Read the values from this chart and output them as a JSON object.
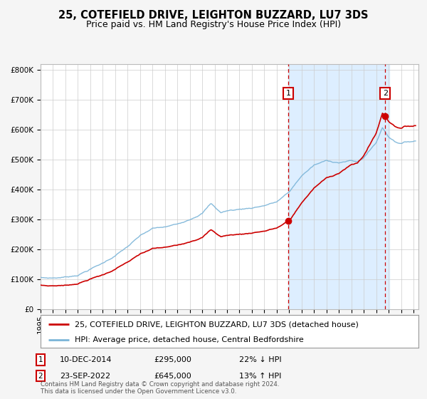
{
  "title": "25, COTEFIELD DRIVE, LEIGHTON BUZZARD, LU7 3DS",
  "subtitle": "Price paid vs. HM Land Registry's House Price Index (HPI)",
  "ylim": [
    0,
    820000
  ],
  "yticks": [
    0,
    100000,
    200000,
    300000,
    400000,
    500000,
    600000,
    700000,
    800000
  ],
  "ytick_labels": [
    "£0",
    "£100K",
    "£200K",
    "£300K",
    "£400K",
    "£500K",
    "£600K",
    "£700K",
    "£800K"
  ],
  "hpi_color": "#7ab4d8",
  "price_color": "#cc0000",
  "sale1_date": 2014.94,
  "sale1_price": 295000,
  "sale1_label": "10-DEC-2014",
  "sale1_amount": "£295,000",
  "sale1_pct": "22% ↓ HPI",
  "sale2_date": 2022.73,
  "sale2_price": 645000,
  "sale2_label": "23-SEP-2022",
  "sale2_amount": "£645,000",
  "sale2_pct": "13% ↑ HPI",
  "shade_color": "#ddeeff",
  "grid_color": "#cccccc",
  "background_color": "#f5f5f5",
  "plot_bg_color": "#ffffff",
  "legend_line1": "25, COTEFIELD DRIVE, LEIGHTON BUZZARD, LU7 3DS (detached house)",
  "legend_line2": "HPI: Average price, detached house, Central Bedfordshire",
  "footnote": "Contains HM Land Registry data © Crown copyright and database right 2024.\nThis data is licensed under the Open Government Licence v3.0.",
  "title_fontsize": 10.5,
  "subtitle_fontsize": 9,
  "tick_fontsize": 7.5,
  "legend_fontsize": 8
}
